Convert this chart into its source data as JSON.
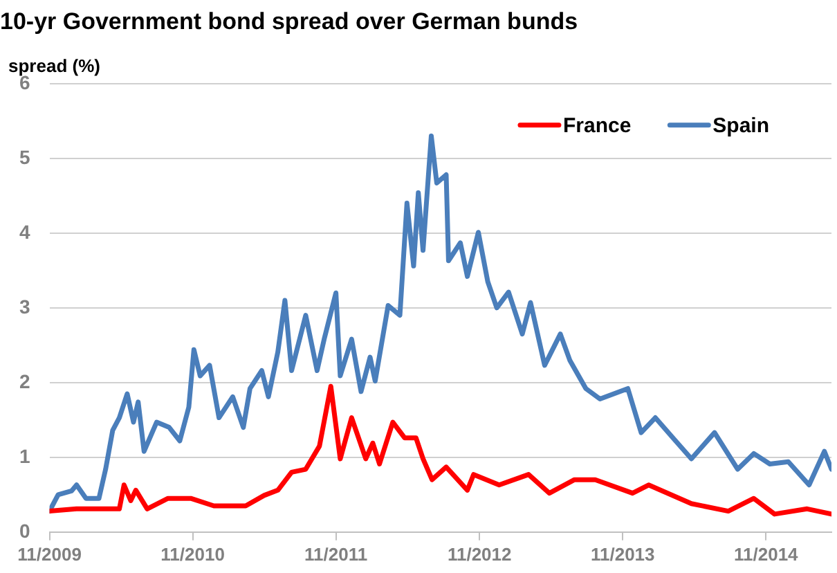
{
  "chart_data": {
    "type": "line",
    "title": "10-yr Government bond spread over German bunds",
    "ylabel": "spread (%)",
    "xlim": [
      "2009-11-01",
      "2015-04-17"
    ],
    "xticks": [
      {
        "value": "2009-11-01",
        "label": "11/2009"
      },
      {
        "value": "2010-11-01",
        "label": "11/2010"
      },
      {
        "value": "2011-11-01",
        "label": "11/2011"
      },
      {
        "value": "2012-11-01",
        "label": "11/2012"
      },
      {
        "value": "2013-11-01",
        "label": "11/2013"
      },
      {
        "value": "2014-11-01",
        "label": "11/2014"
      }
    ],
    "ylim": [
      0,
      6
    ],
    "yticks": [
      0,
      1,
      2,
      3,
      4,
      5,
      6
    ],
    "grid": "y",
    "legend": "top right",
    "marker": "none",
    "line_style": "solid",
    "series": [
      {
        "name": "France",
        "color": "#ff0000",
        "x": [
          "2009-11-01",
          "2010-01-09",
          "2010-03-18",
          "2010-04-28",
          "2010-05-10",
          "2010-05-27",
          "2010-06-09",
          "2010-07-08",
          "2010-08-30",
          "2010-10-27",
          "2010-12-25",
          "2011-03-16",
          "2011-05-02",
          "2011-06-06",
          "2011-07-11",
          "2011-08-16",
          "2011-09-20",
          "2011-10-19",
          "2011-11-12",
          "2011-12-11",
          "2012-01-16",
          "2012-02-03",
          "2012-02-20",
          "2012-03-25",
          "2012-04-24",
          "2012-05-23",
          "2012-06-10",
          "2012-07-03",
          "2012-08-08",
          "2012-10-01",
          "2012-10-17",
          "2012-12-21",
          "2013-03-06",
          "2013-04-28",
          "2013-07-01",
          "2013-08-23",
          "2013-11-26",
          "2014-01-06",
          "2014-04-25",
          "2014-07-28",
          "2014-10-01",
          "2014-11-23",
          "2015-02-14",
          "2015-04-17"
        ],
        "values": [
          0.28,
          0.31,
          0.31,
          0.31,
          0.63,
          0.42,
          0.56,
          0.31,
          0.45,
          0.45,
          0.35,
          0.35,
          0.49,
          0.56,
          0.8,
          0.84,
          1.15,
          1.95,
          0.98,
          1.53,
          0.98,
          1.19,
          0.91,
          1.47,
          1.26,
          1.26,
          0.98,
          0.7,
          0.87,
          0.56,
          0.77,
          0.63,
          0.77,
          0.52,
          0.7,
          0.7,
          0.52,
          0.63,
          0.38,
          0.28,
          0.45,
          0.24,
          0.31,
          0.24
        ]
      },
      {
        "name": "Spain",
        "color": "#4a7ebb",
        "x": [
          "2009-11-01",
          "2009-11-23",
          "2009-12-27",
          "2010-01-09",
          "2010-02-02",
          "2010-03-07",
          "2010-03-24",
          "2010-04-11",
          "2010-04-28",
          "2010-05-18",
          "2010-06-03",
          "2010-06-15",
          "2010-06-30",
          "2010-08-01",
          "2010-09-02",
          "2010-09-29",
          "2010-10-22",
          "2010-11-04",
          "2010-11-20",
          "2010-12-14",
          "2011-01-07",
          "2011-02-11",
          "2011-03-10",
          "2011-03-27",
          "2011-04-26",
          "2011-05-13",
          "2011-06-06",
          "2011-06-24",
          "2011-07-11",
          "2011-08-16",
          "2011-09-14",
          "2011-10-02",
          "2011-11-01",
          "2011-11-12",
          "2011-12-11",
          "2012-01-04",
          "2012-01-27",
          "2012-02-09",
          "2012-03-13",
          "2012-04-12",
          "2012-04-30",
          "2012-05-17",
          "2012-05-29",
          "2012-06-10",
          "2012-07-01",
          "2012-07-15",
          "2012-08-08",
          "2012-08-14",
          "2012-09-13",
          "2012-10-01",
          "2012-10-29",
          "2012-11-22",
          "2012-12-15",
          "2013-01-14",
          "2013-02-18",
          "2013-03-11",
          "2013-04-16",
          "2013-05-26",
          "2013-06-19",
          "2013-07-30",
          "2013-09-04",
          "2013-11-14",
          "2013-12-18",
          "2014-01-23",
          "2014-03-09",
          "2014-04-25",
          "2014-06-23",
          "2014-08-21",
          "2014-10-01",
          "2014-11-11",
          "2014-12-28",
          "2015-02-19",
          "2015-03-30",
          "2015-04-17"
        ],
        "values": [
          0.28,
          0.5,
          0.55,
          0.63,
          0.45,
          0.45,
          0.84,
          1.36,
          1.53,
          1.85,
          1.47,
          1.74,
          1.08,
          1.47,
          1.4,
          1.22,
          1.67,
          2.44,
          2.09,
          2.23,
          1.53,
          1.81,
          1.4,
          1.92,
          2.16,
          1.81,
          2.41,
          3.1,
          2.16,
          2.9,
          2.16,
          2.58,
          3.2,
          2.09,
          2.58,
          1.88,
          2.34,
          2.02,
          3.03,
          2.9,
          4.4,
          3.56,
          4.54,
          3.77,
          5.3,
          4.67,
          4.78,
          3.63,
          3.87,
          3.42,
          4.01,
          3.35,
          3.0,
          3.21,
          2.65,
          3.07,
          2.23,
          2.65,
          2.3,
          1.92,
          1.78,
          1.92,
          1.33,
          1.53,
          1.26,
          0.98,
          1.33,
          0.84,
          1.05,
          0.91,
          0.94,
          0.63,
          1.08,
          0.84
        ]
      }
    ]
  }
}
